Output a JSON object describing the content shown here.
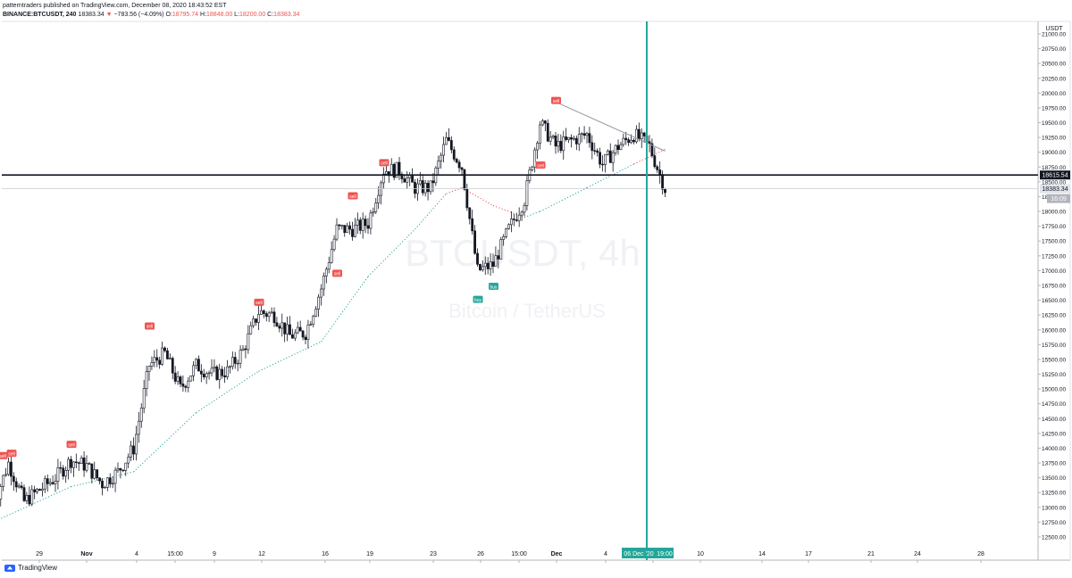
{
  "header": {
    "publisher_line": "patterntraders published on TradingView.com, December 08, 2020 18:43:52 EST",
    "symbol": "BINANCE:BTCUSDT, 240",
    "last": "18383.34",
    "change": "−783.56 (−4.09%)",
    "o_label": "O:",
    "o_value": "18795.74",
    "h_label": "H:",
    "h_value": "18848.00",
    "l_label": "L:",
    "l_value": "18200.00",
    "c_label": "C:",
    "c_value": "18383.34"
  },
  "watermark": {
    "symbol": "BTCUSDT, 4h",
    "name": "Bitcoin / TetherUS"
  },
  "price_axis": {
    "currency": "USDT",
    "ticks": [
      "21000.00",
      "20750.00",
      "20500.00",
      "20250.00",
      "20000.00",
      "19750.00",
      "19500.00",
      "19250.00",
      "19000.00",
      "18750.00",
      "18500.00",
      "18250.00",
      "18000.00",
      "17750.00",
      "17500.00",
      "17250.00",
      "17000.00",
      "16750.00",
      "16500.00",
      "16250.00",
      "16000.00",
      "15750.00",
      "15500.00",
      "15250.00",
      "15000.00",
      "14750.00",
      "14500.00",
      "14250.00",
      "14000.00",
      "13750.00",
      "13500.00",
      "13250.00",
      "13000.00",
      "12750.00",
      "12500.00"
    ],
    "labels": {
      "hline": "18615.54",
      "last": "18383.34",
      "countdown": "16:09"
    }
  },
  "time_axis": {
    "ticks": [
      "29",
      "Nov",
      "4",
      "15:00",
      "9",
      "12",
      "16",
      "19",
      "23",
      "26",
      "15:00",
      "Dec",
      "4",
      "7",
      "10",
      "14",
      "17",
      "21",
      "24",
      "28"
    ],
    "crosshair_label": "06 Dec '20",
    "crosshair_time": "19:00"
  },
  "chart_data": {
    "type": "candlestick",
    "symbol": "BINANCE:BTCUSDT",
    "interval": "240",
    "ylim": [
      12400,
      21200
    ],
    "horizontal_line": 18615.54,
    "last_price": 18383.34,
    "signal_labels": [
      {
        "text": "sell",
        "date": "Oct 27",
        "price": 13860
      },
      {
        "text": "sell",
        "date": "Oct 27",
        "price": 13900
      },
      {
        "text": "sell",
        "date": "Oct 31",
        "price": 14050
      },
      {
        "text": "sell",
        "date": "Nov 5",
        "price": 16050
      },
      {
        "text": "sell",
        "date": "Nov 12",
        "price": 16450
      },
      {
        "text": "sell",
        "date": "Nov 17",
        "price": 16940
      },
      {
        "text": "sell",
        "date": "Nov 18",
        "price": 18250
      },
      {
        "text": "sell",
        "date": "Nov 20",
        "price": 18810
      },
      {
        "text": "buy",
        "date": "Nov 26",
        "price": 16500
      },
      {
        "text": "buy",
        "date": "Nov 27",
        "price": 16720
      },
      {
        "text": "sell",
        "date": "Nov 30",
        "price": 18770
      },
      {
        "text": "sell",
        "date": "Dec 1",
        "price": 19860
      }
    ],
    "trendline": [
      [
        "Dec 1",
        19850
      ],
      [
        "Dec 8",
        19020
      ]
    ],
    "price_path": [
      [
        "Oct 26",
        13000
      ],
      [
        "Oct 27",
        13750
      ],
      [
        "Oct 28",
        13100
      ],
      [
        "Oct 29",
        13300
      ],
      [
        "Oct 30",
        13500
      ],
      [
        "Oct 31",
        13800
      ],
      [
        "Nov 1",
        13700
      ],
      [
        "Nov 2",
        13400
      ],
      [
        "Nov 3",
        13600
      ],
      [
        "Nov 4",
        14000
      ],
      [
        "Nov 5",
        15400
      ],
      [
        "Nov 6",
        15600
      ],
      [
        "Nov 7",
        15000
      ],
      [
        "Nov 8",
        15400
      ],
      [
        "Nov 9",
        15250
      ],
      [
        "Nov 10",
        15300
      ],
      [
        "Nov 11",
        15650
      ],
      [
        "Nov 12",
        16300
      ],
      [
        "Nov 13",
        16250
      ],
      [
        "Nov 14",
        15900
      ],
      [
        "Nov 15",
        15950
      ],
      [
        "Nov 16",
        16700
      ],
      [
        "Nov 17",
        17700
      ],
      [
        "Nov 18",
        17700
      ],
      [
        "Nov 19",
        17800
      ],
      [
        "Nov 20",
        18700
      ],
      [
        "Nov 21",
        18700
      ],
      [
        "Nov 22",
        18400
      ],
      [
        "Nov 23",
        18400
      ],
      [
        "Nov 24",
        19200
      ],
      [
        "Nov 25",
        18750
      ],
      [
        "Nov 26",
        17000
      ],
      [
        "Nov 27",
        17100
      ],
      [
        "Nov 28",
        17700
      ],
      [
        "Nov 29",
        18200
      ],
      [
        "Nov 30",
        19500
      ],
      [
        "Dec 1",
        19100
      ],
      [
        "Dec 2",
        19200
      ],
      [
        "Dec 3",
        19300
      ],
      [
        "Dec 4",
        18800
      ],
      [
        "Dec 5",
        19100
      ],
      [
        "Dec 6",
        19300
      ],
      [
        "Dec 7",
        19100
      ],
      [
        "Dec 8",
        18383
      ]
    ]
  },
  "footer": {
    "brand": "TradingView"
  },
  "colors": {
    "up": "#131722",
    "down": "#131722",
    "sell": "#ef5350",
    "buy": "#26a69a",
    "crosshair": "#26a69a",
    "ema_up": "#26a69a",
    "ema_down": "#ef5350"
  }
}
